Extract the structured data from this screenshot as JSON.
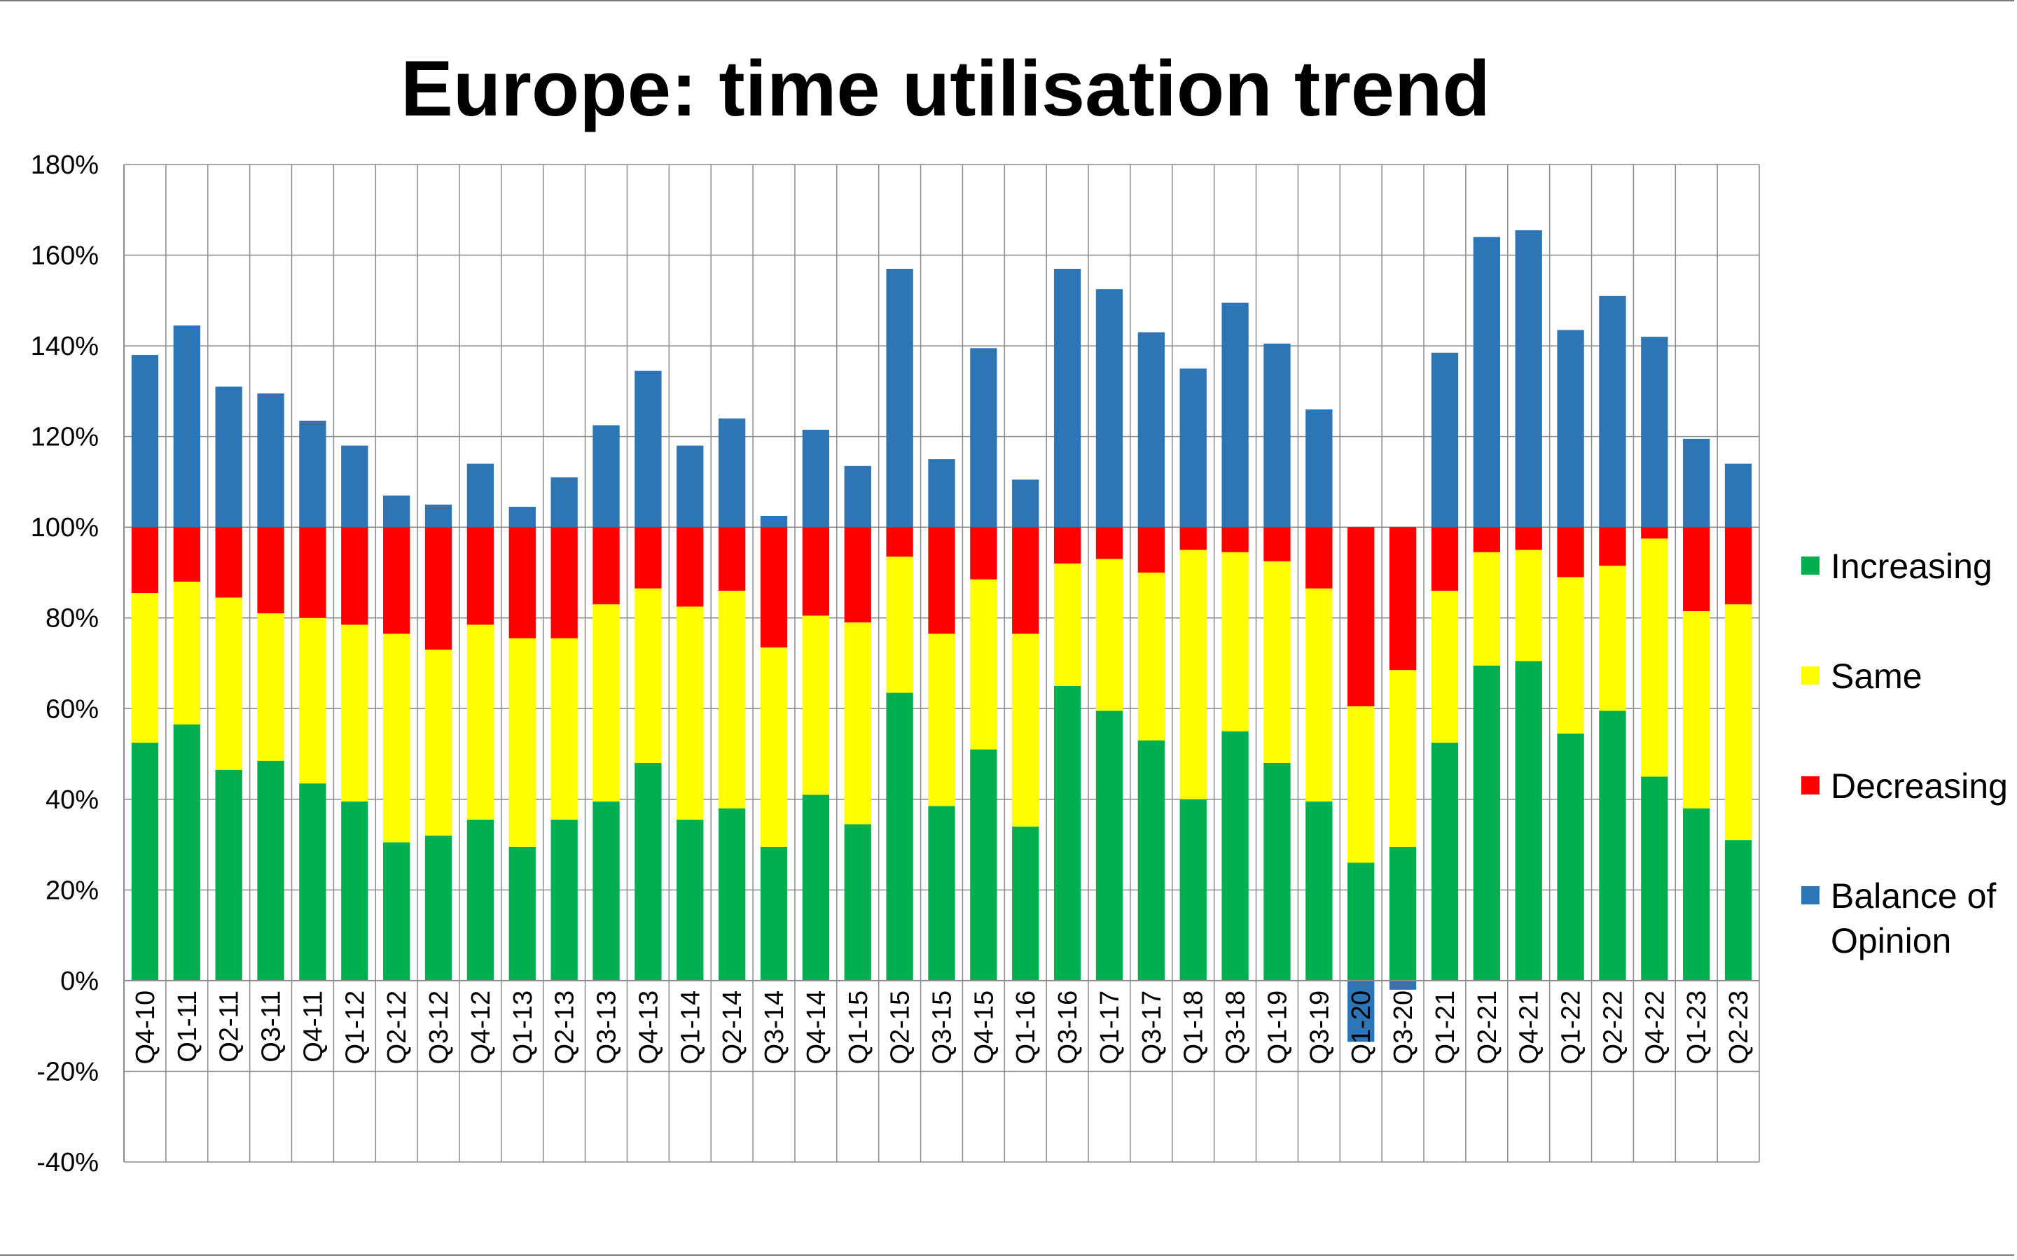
{
  "chart_data": {
    "type": "bar",
    "stacked": true,
    "title": "Europe: time utilisation trend",
    "xlabel": "",
    "ylabel": "",
    "ylim": [
      -40,
      180
    ],
    "yticks": [
      "-40%",
      "-20%",
      "0%",
      "20%",
      "40%",
      "60%",
      "80%",
      "100%",
      "120%",
      "140%",
      "160%",
      "180%"
    ],
    "grid": true,
    "legend_position": "right",
    "categories": [
      "Q4-10",
      "Q1-11",
      "Q2-11",
      "Q3-11",
      "Q4-11",
      "Q1-12",
      "Q2-12",
      "Q3-12",
      "Q4-12",
      "Q1-13",
      "Q2-13",
      "Q3-13",
      "Q4-13",
      "Q1-14",
      "Q2-14",
      "Q3-14",
      "Q4-14",
      "Q1-15",
      "Q2-15",
      "Q3-15",
      "Q4-15",
      "Q1-16",
      "Q3-16",
      "Q1-17",
      "Q3-17",
      "Q1-18",
      "Q3-18",
      "Q1-19",
      "Q3-19",
      "Q1-20",
      "Q3-20",
      "Q1-21",
      "Q2-21",
      "Q4-21",
      "Q1-22",
      "Q2-22",
      "Q4-22",
      "Q1-23",
      "Q2-23"
    ],
    "series": [
      {
        "name": "Increasing",
        "color": "#00b050",
        "values": [
          52.5,
          56.5,
          46.5,
          48.5,
          43.5,
          39.5,
          30.5,
          32,
          35.5,
          29.5,
          35.5,
          39.5,
          48,
          35.5,
          38,
          29.5,
          41,
          34.5,
          63.5,
          38.5,
          51,
          34,
          65,
          59.5,
          53,
          40,
          55,
          48,
          39.5,
          26,
          29.5,
          52.5,
          69.5,
          70.5,
          54.5,
          59.5,
          45,
          38,
          31
        ]
      },
      {
        "name": "Same",
        "color": "#ffff00",
        "values": [
          33,
          31.5,
          38,
          32.5,
          36.5,
          39,
          46,
          41,
          43,
          46,
          40,
          43.5,
          38.5,
          47,
          48,
          44,
          39.5,
          44.5,
          30,
          38,
          37.5,
          42.5,
          27,
          33.5,
          37,
          55,
          39.5,
          44.5,
          47,
          34.5,
          39,
          33.5,
          25,
          24.5,
          34.5,
          32,
          52.5,
          43.5,
          52
        ]
      },
      {
        "name": "Decreasing",
        "color": "#ff0000",
        "values": [
          14.5,
          12,
          15.5,
          19,
          20,
          21.5,
          23.5,
          27,
          21.5,
          24.5,
          24.5,
          17,
          13.5,
          17.5,
          14,
          26.5,
          19.5,
          21,
          6.5,
          23.5,
          11.5,
          23.5,
          8,
          7,
          10,
          5,
          5.5,
          7.5,
          13.5,
          39.5,
          31.5,
          14,
          5.5,
          5,
          11,
          8.5,
          2.5,
          18.5,
          17
        ]
      },
      {
        "name": "Balance of Opinion",
        "color": "#2e75b6",
        "values": [
          38,
          44.5,
          31,
          29.5,
          23.5,
          18,
          7,
          5,
          14,
          4.5,
          11,
          22.5,
          34.5,
          18,
          24,
          2.5,
          21.5,
          13.5,
          57,
          15,
          39.5,
          10.5,
          57,
          52.5,
          43,
          35,
          49.5,
          40.5,
          26,
          -13.5,
          -2,
          38.5,
          64,
          65.5,
          43.5,
          51,
          42,
          19.5,
          14
        ]
      }
    ]
  }
}
